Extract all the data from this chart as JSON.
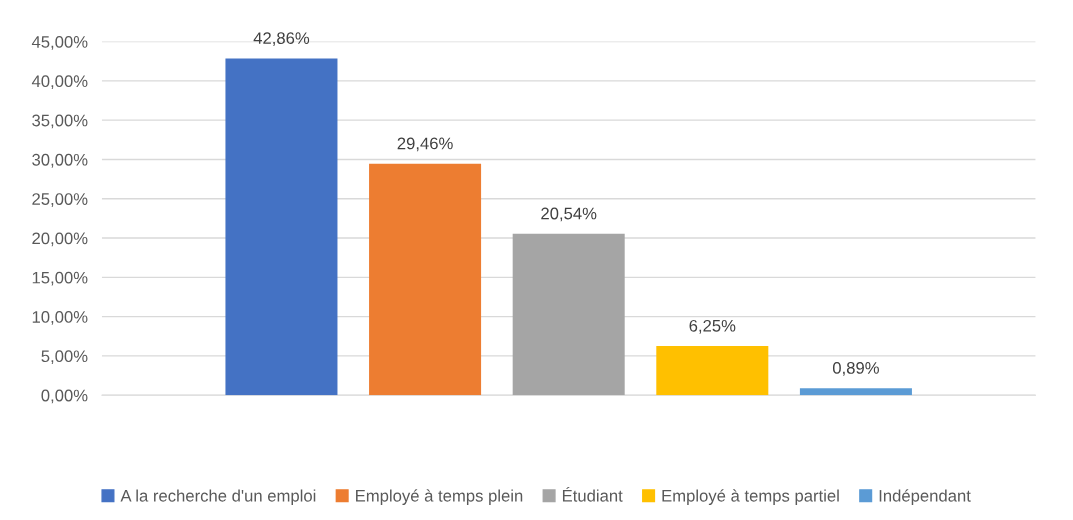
{
  "chart_data": {
    "type": "bar",
    "categories": [
      null,
      null,
      null,
      null,
      null
    ],
    "series": [
      {
        "name": "A la recherche d'un emploi",
        "color": "#4472c4",
        "values": [
          42.86,
          null,
          null,
          null,
          null
        ],
        "value_labels": [
          "42,86%",
          null,
          null,
          null,
          null
        ]
      },
      {
        "name": "Employé à temps plein",
        "color": "#ed7d31",
        "values": [
          null,
          29.46,
          null,
          null,
          null
        ],
        "value_labels": [
          null,
          "29,46%",
          null,
          null,
          null
        ]
      },
      {
        "name": "Étudiant",
        "color": "#a5a5a5",
        "values": [
          null,
          null,
          20.54,
          null,
          null
        ],
        "value_labels": [
          null,
          null,
          "20,54%",
          null,
          null
        ]
      },
      {
        "name": "Employé à temps partiel",
        "color": "#ffc000",
        "values": [
          null,
          null,
          null,
          6.25,
          null
        ],
        "value_labels": [
          null,
          null,
          null,
          "6,25%",
          null
        ]
      },
      {
        "name": "Indépendant",
        "color": "#5b9bd5",
        "values": [
          null,
          null,
          null,
          null,
          0.89
        ],
        "value_labels": [
          null,
          null,
          null,
          null,
          "0,89%"
        ]
      }
    ],
    "ylim": [
      0,
      45
    ],
    "yticks": [
      {
        "value": 0,
        "label": "0,00%"
      },
      {
        "value": 5,
        "label": "5,00%"
      },
      {
        "value": 10,
        "label": "10,00%"
      },
      {
        "value": 15,
        "label": "15,00%"
      },
      {
        "value": 20,
        "label": "20,00%"
      },
      {
        "value": 25,
        "label": "25,00%"
      },
      {
        "value": 30,
        "label": "30,00%"
      },
      {
        "value": 35,
        "label": "35,00%"
      },
      {
        "value": 40,
        "label": "40,00%"
      },
      {
        "value": 45,
        "label": "45,00%"
      }
    ],
    "grid": "y",
    "legend": "bottom"
  }
}
